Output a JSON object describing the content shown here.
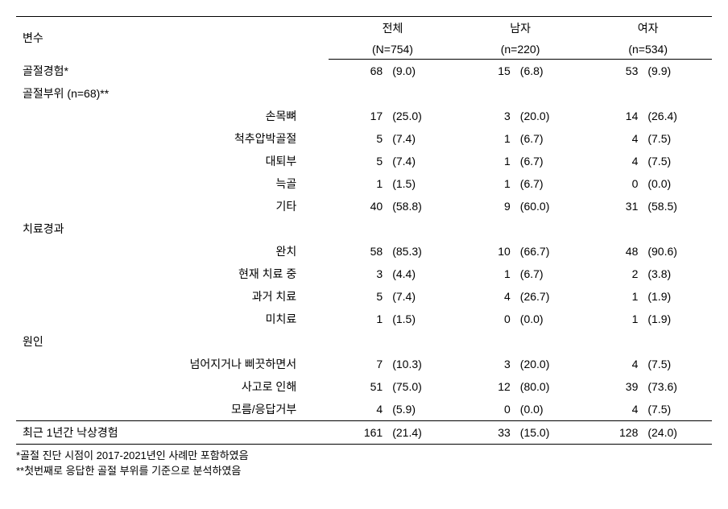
{
  "header": {
    "variable_label": "변수",
    "groups": [
      {
        "label": "전체",
        "n_label": "(N=754)"
      },
      {
        "label": "남자",
        "n_label": "(n=220)"
      },
      {
        "label": "여자",
        "n_label": "(n=534)"
      }
    ]
  },
  "rows": [
    {
      "type": "data",
      "label": "골절경험*",
      "indent": false,
      "vals": [
        [
          "68",
          "(9.0)"
        ],
        [
          "15",
          "(6.8)"
        ],
        [
          "53",
          "(9.9)"
        ]
      ]
    },
    {
      "type": "section",
      "label": "골절부위 (n=68)**"
    },
    {
      "type": "data",
      "label": "손목뼈",
      "indent": true,
      "vals": [
        [
          "17",
          "(25.0)"
        ],
        [
          "3",
          "(20.0)"
        ],
        [
          "14",
          "(26.4)"
        ]
      ]
    },
    {
      "type": "data",
      "label": "척추압박골절",
      "indent": true,
      "vals": [
        [
          "5",
          "(7.4)"
        ],
        [
          "1",
          "(6.7)"
        ],
        [
          "4",
          "(7.5)"
        ]
      ]
    },
    {
      "type": "data",
      "label": "대퇴부",
      "indent": true,
      "vals": [
        [
          "5",
          "(7.4)"
        ],
        [
          "1",
          "(6.7)"
        ],
        [
          "4",
          "(7.5)"
        ]
      ]
    },
    {
      "type": "data",
      "label": "늑골",
      "indent": true,
      "vals": [
        [
          "1",
          "(1.5)"
        ],
        [
          "1",
          "(6.7)"
        ],
        [
          "0",
          "(0.0)"
        ]
      ]
    },
    {
      "type": "data",
      "label": "기타",
      "indent": true,
      "vals": [
        [
          "40",
          "(58.8)"
        ],
        [
          "9",
          "(60.0)"
        ],
        [
          "31",
          "(58.5)"
        ]
      ]
    },
    {
      "type": "section",
      "label": "치료경과"
    },
    {
      "type": "data",
      "label": "완치",
      "indent": true,
      "vals": [
        [
          "58",
          "(85.3)"
        ],
        [
          "10",
          "(66.7)"
        ],
        [
          "48",
          "(90.6)"
        ]
      ]
    },
    {
      "type": "data",
      "label": "현재 치료 중",
      "indent": true,
      "vals": [
        [
          "3",
          "(4.4)"
        ],
        [
          "1",
          "(6.7)"
        ],
        [
          "2",
          "(3.8)"
        ]
      ]
    },
    {
      "type": "data",
      "label": "과거 치료",
      "indent": true,
      "vals": [
        [
          "5",
          "(7.4)"
        ],
        [
          "4",
          "(26.7)"
        ],
        [
          "1",
          "(1.9)"
        ]
      ]
    },
    {
      "type": "data",
      "label": "미치료",
      "indent": true,
      "vals": [
        [
          "1",
          "(1.5)"
        ],
        [
          "0",
          "(0.0)"
        ],
        [
          "1",
          "(1.9)"
        ]
      ]
    },
    {
      "type": "section",
      "label": "원인"
    },
    {
      "type": "data",
      "label": "넘어지거나 삐끗하면서",
      "indent": true,
      "vals": [
        [
          "7",
          "(10.3)"
        ],
        [
          "3",
          "(20.0)"
        ],
        [
          "4",
          "(7.5)"
        ]
      ]
    },
    {
      "type": "data",
      "label": "사고로 인해",
      "indent": true,
      "vals": [
        [
          "51",
          "(75.0)"
        ],
        [
          "12",
          "(80.0)"
        ],
        [
          "39",
          "(73.6)"
        ]
      ]
    },
    {
      "type": "data",
      "label": "모름/응답거부",
      "indent": true,
      "vals": [
        [
          "4",
          "(5.9)"
        ],
        [
          "0",
          "(0.0)"
        ],
        [
          "4",
          "(7.5)"
        ]
      ]
    },
    {
      "type": "last",
      "label": "최근 1년간 낙상경험",
      "indent": false,
      "vals": [
        [
          "161",
          "(21.4)"
        ],
        [
          "33",
          "(15.0)"
        ],
        [
          "128",
          "(24.0)"
        ]
      ]
    }
  ],
  "footnotes": [
    "*골절 진단 시점이 2017-2021년인 사례만 포함하였음",
    "**첫번째로 응답한 골절 부위를 기준으로 분석하였음"
  ]
}
